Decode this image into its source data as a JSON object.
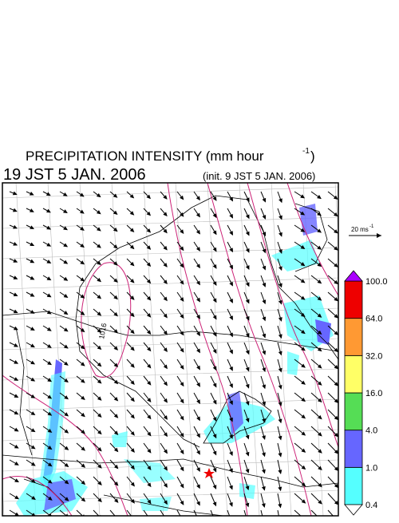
{
  "header": {
    "title": "PRECIPITATION INTENSITY (mm hour",
    "title_exponent": "-1",
    "title_close": ")",
    "valid_time": "19 JST 5 JAN. 2006",
    "init_time": "(init. 9 JST 5 JAN. 2006)"
  },
  "map": {
    "contour_label": "1016"
  },
  "reference_vector": {
    "label": "20 ms",
    "exponent": "-1"
  },
  "colorbar": {
    "levels": [
      "0.4",
      "1.0",
      "4.0",
      "16.0",
      "32.0",
      "64.0",
      "100.0"
    ],
    "colors": [
      "#55ffff",
      "#6666ff",
      "#55dd55",
      "#ffff66",
      "#ff9933",
      "#ee0000"
    ],
    "under_color": "#ffffff",
    "over_color": "#aa00ff"
  }
}
